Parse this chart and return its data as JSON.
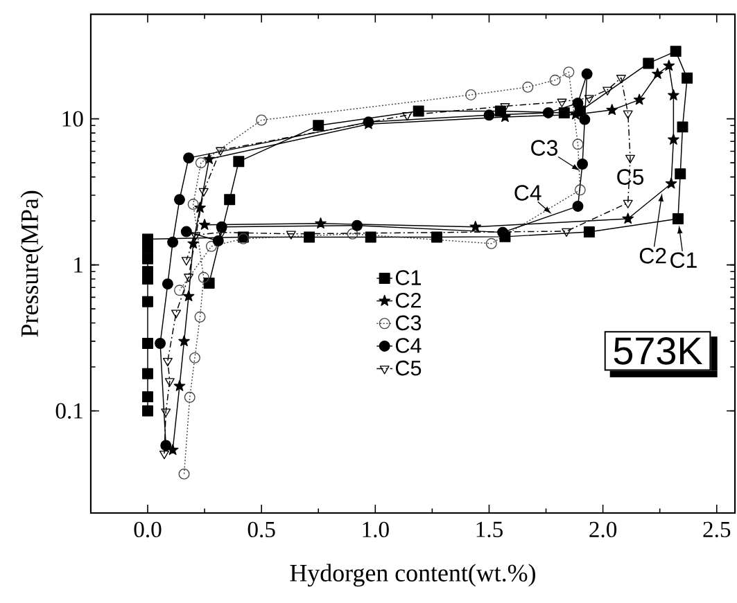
{
  "chart_data": {
    "type": "line",
    "xlabel": "Hydorgen content(wt.%)",
    "ylabel": "Pressure(MPa)",
    "log": "y",
    "xlim": [
      -0.25,
      2.58
    ],
    "ylim": [
      0.02,
      52
    ],
    "xticks": [
      {
        "value": 0,
        "label": "0.0"
      },
      0.5,
      {
        "value": 1,
        "label": "1.0"
      },
      1.5,
      {
        "value": 2,
        "label": "2.0"
      },
      2.5
    ],
    "yticks": [
      0.1,
      1,
      10
    ],
    "legend": "center",
    "grid": false,
    "series": [
      {
        "name": "C1",
        "color": "#000000",
        "marker": "square",
        "line_style": "solid",
        "x": [
          0.27,
          0.36,
          0.4,
          0.75,
          1.19,
          1.55,
          1.83,
          1.9,
          2.2,
          2.32,
          2.37,
          2.35,
          2.34,
          2.33,
          1.94,
          1.57,
          1.27,
          0.98,
          0.71,
          0.42,
          0,
          0,
          0,
          0,
          0,
          0,
          0,
          0,
          0,
          0
        ],
        "values": [
          0.75,
          2.8,
          5.1,
          9.0,
          11.3,
          11.3,
          11,
          11.3,
          24,
          29,
          19,
          8.8,
          4.2,
          2.07,
          1.68,
          1.56,
          1.55,
          1.55,
          1.55,
          1.55,
          1.5,
          1.3,
          1.1,
          0.9,
          0.8,
          0.56,
          0.29,
          0.18,
          0.125,
          0.1
        ]
      },
      {
        "name": "C2",
        "color": "#000000",
        "marker": "star",
        "line_style": "solid",
        "x": [
          0.11,
          0.14,
          0.16,
          0.18,
          0.2,
          0.23,
          0.27,
          0.97,
          1.57,
          1.88,
          2.04,
          2.16,
          2.24,
          2.29,
          2.31,
          2.31,
          2.3,
          2.11,
          1.44,
          0.76,
          0.25
        ],
        "values": [
          0.054,
          0.148,
          0.3,
          0.61,
          1.4,
          2.46,
          5.3,
          9.2,
          10.3,
          10.7,
          11.5,
          13.5,
          20.3,
          23.1,
          14.5,
          7.2,
          3.6,
          2.07,
          1.82,
          1.92,
          1.88
        ]
      },
      {
        "name": "C3",
        "color": "#444444",
        "marker": "circle",
        "line_style": "dotted",
        "x": [
          0.16,
          0.185,
          0.207,
          0.23,
          0.246,
          0.2,
          0.234,
          0.5,
          1.42,
          1.67,
          1.79,
          1.85,
          1.89,
          1.9,
          1.51,
          0.9,
          0.42,
          0.28,
          0.14
        ],
        "values": [
          0.037,
          0.124,
          0.231,
          0.44,
          0.82,
          2.6,
          5.0,
          9.8,
          14.6,
          16.5,
          18.4,
          20.9,
          6.7,
          3.26,
          1.4,
          1.63,
          1.51,
          1.34,
          0.67
        ]
      },
      {
        "name": "C4",
        "color": "#000000",
        "marker": "circle",
        "line_style": "solid",
        "x": [
          0.08,
          0.055,
          0.088,
          0.11,
          0.14,
          0.18,
          0.97,
          1.5,
          1.76,
          1.89,
          1.93,
          1.92,
          1.91,
          1.89,
          1.56,
          0.92,
          0.325,
          0.31,
          0.17
        ],
        "values": [
          0.058,
          0.29,
          0.74,
          1.43,
          2.8,
          5.4,
          9.5,
          10.6,
          11,
          12.8,
          20.3,
          9.9,
          4.9,
          2.52,
          1.67,
          1.86,
          1.82,
          1.46,
          1.69
        ]
      },
      {
        "name": "C5",
        "color": "#000000",
        "marker": "triangle",
        "line_style": "dashed",
        "x": [
          0.073,
          0.08,
          0.097,
          0.088,
          0.125,
          0.18,
          0.246,
          0.32,
          1.14,
          1.57,
          1.82,
          1.94,
          2.02,
          2.08,
          2.11,
          2.12,
          2.11,
          1.84,
          0.63,
          0.325,
          0.21,
          0.17
        ],
        "values": [
          0.051,
          0.099,
          0.16,
          0.22,
          0.47,
          0.83,
          3.2,
          6.1,
          10.6,
          12.2,
          13.1,
          13.9,
          15.8,
          19.1,
          10.9,
          5.4,
          2.66,
          1.7,
          1.63,
          1.67,
          1.6,
          1.08
        ]
      }
    ],
    "annotations": [
      {
        "text": "C1",
        "x": 2.33,
        "y": 2.07
      },
      {
        "text": "C2",
        "x": 2.26,
        "y": 3.1
      },
      {
        "text": "C3",
        "x": 1.9,
        "y": 4.4
      },
      {
        "text": "C4",
        "x": 1.775,
        "y": 2.23
      },
      {
        "text": "C5",
        "x": 2.12,
        "y": 4.0
      },
      "573K"
    ]
  }
}
